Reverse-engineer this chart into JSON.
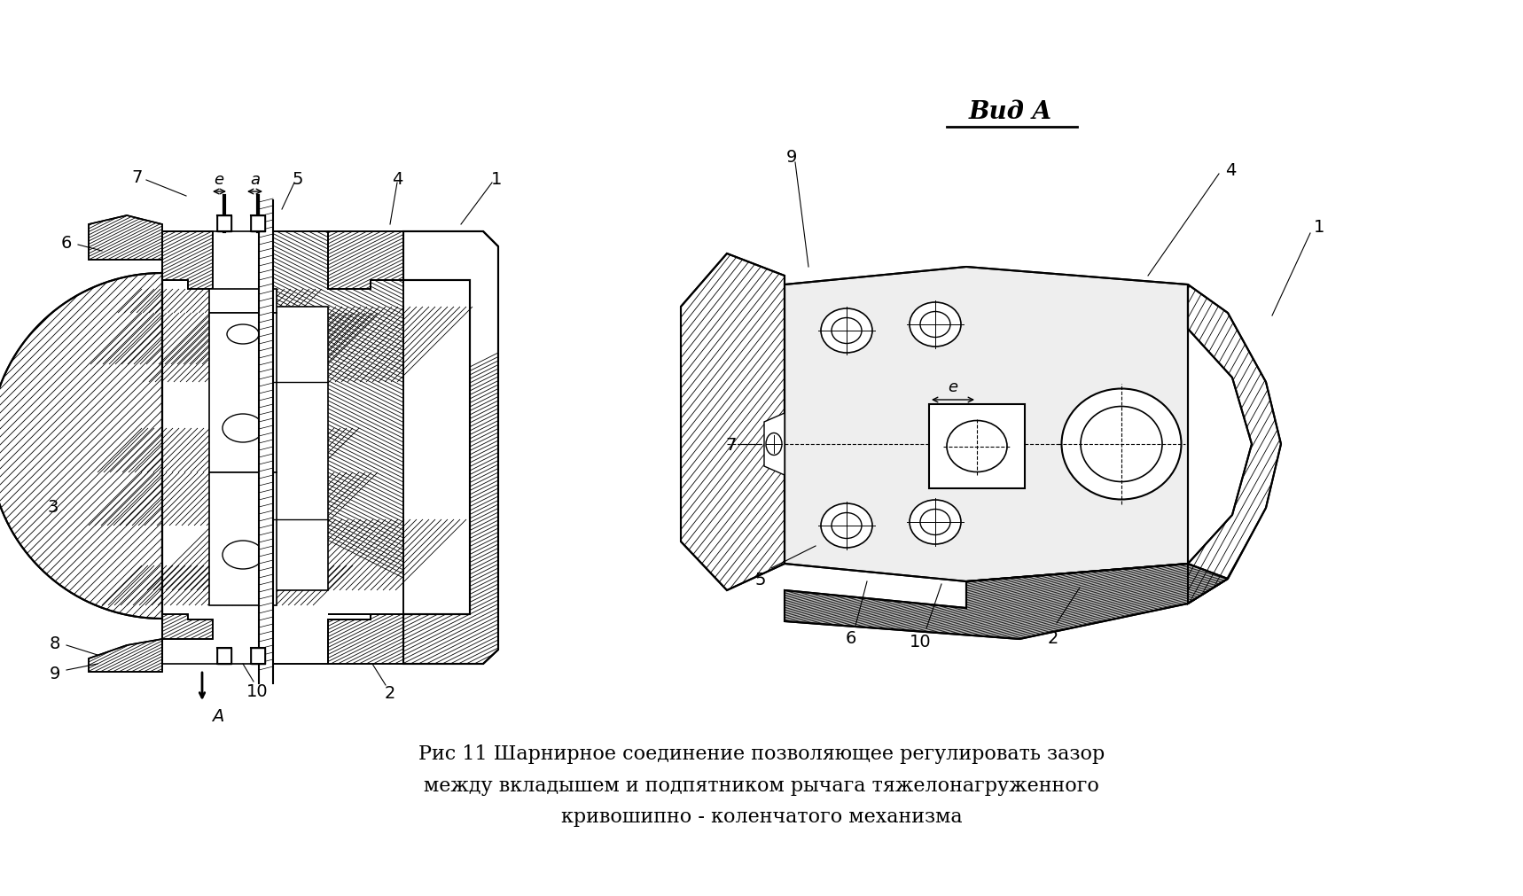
{
  "background_color": "#ffffff",
  "title_text": "Рис 11 Шарнирное соединение позволяющее регулировать зазор\nмежду вкладышем и подпятником рычага тяжелонагруженного\nкривошипно - коленчатого механизма",
  "vid_a_label": "Вид A",
  "line_color": "#000000",
  "hatch_color": "#000000",
  "label_fontsize": 14,
  "title_fontsize": 16
}
